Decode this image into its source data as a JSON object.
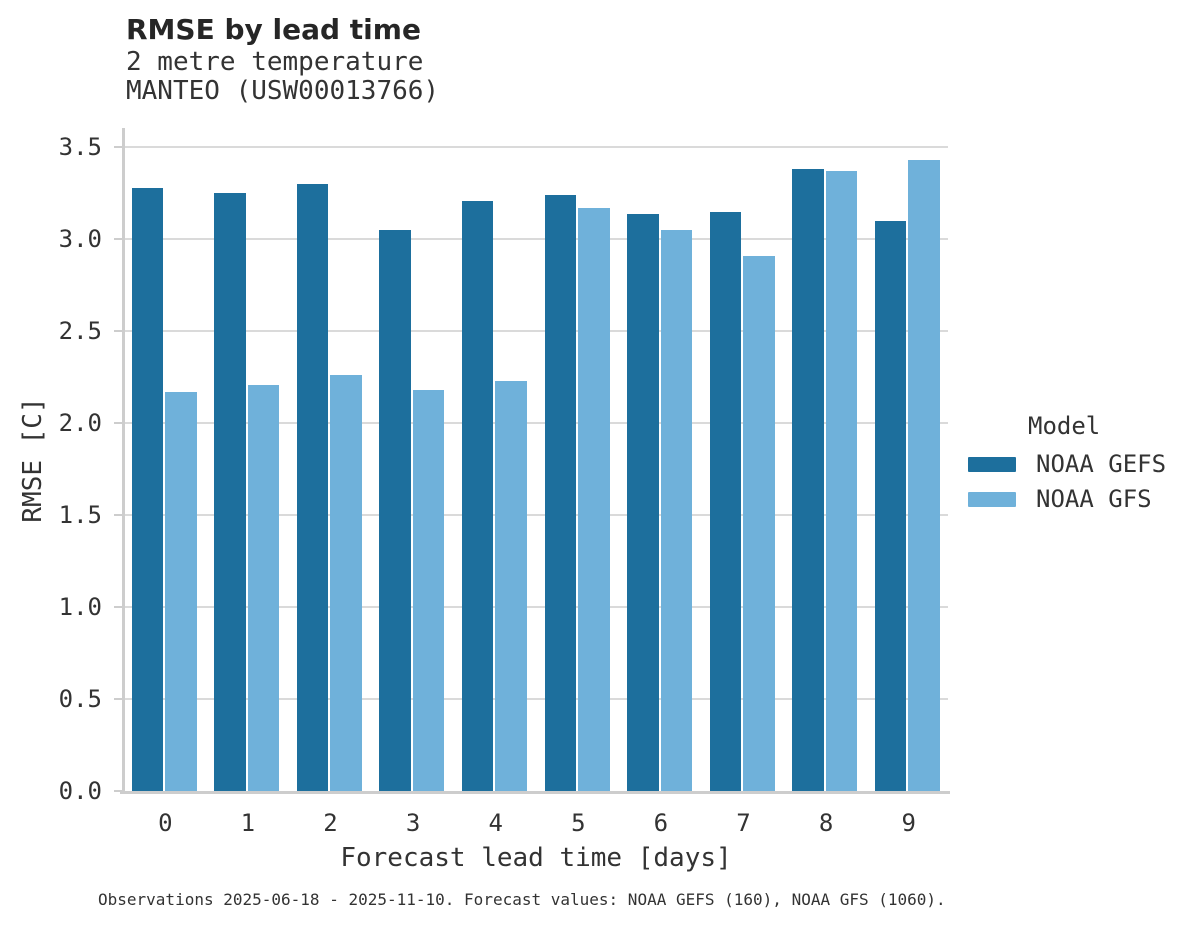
{
  "header": {
    "title": "RMSE by lead time",
    "subtitle": "2 metre temperature",
    "station": "MANTEO (USW00013766)"
  },
  "axes": {
    "x_label": "Forecast lead time [days]",
    "y_label": "RMSE [C]"
  },
  "legend": {
    "title": "Model",
    "items": [
      {
        "label": "NOAA GEFS",
        "color": "#1d6f9d"
      },
      {
        "label": "NOAA GFS",
        "color": "#6fb1da"
      }
    ]
  },
  "footer": {
    "caption": "Observations 2025-06-18 - 2025-11-10. Forecast values: NOAA GEFS (160), NOAA GFS (1060)."
  },
  "chart_data": {
    "type": "bar",
    "title": "RMSE by lead time",
    "subtitle": "2 metre temperature",
    "station": "MANTEO (USW00013766)",
    "categories": [
      "0",
      "1",
      "2",
      "3",
      "4",
      "5",
      "6",
      "7",
      "8",
      "9"
    ],
    "series": [
      {
        "name": "NOAA GEFS",
        "color": "#1d6f9d",
        "values": [
          3.28,
          3.25,
          3.3,
          3.05,
          3.21,
          3.24,
          3.14,
          3.15,
          3.38,
          3.1
        ]
      },
      {
        "name": "NOAA GFS",
        "color": "#6fb1da",
        "values": [
          2.17,
          2.21,
          2.26,
          2.18,
          2.23,
          3.17,
          3.05,
          2.91,
          3.37,
          3.43
        ]
      }
    ],
    "xlabel": "Forecast lead time [days]",
    "ylabel": "RMSE [C]",
    "ylim": [
      0,
      3.62
    ],
    "yticks": [
      0.0,
      0.5,
      1.0,
      1.5,
      2.0,
      2.5,
      3.0,
      3.5
    ],
    "ytick_labels": [
      "0.0",
      "0.5",
      "1.0",
      "1.5",
      "2.0",
      "2.5",
      "3.0",
      "3.5"
    ],
    "grid": true,
    "legend_title": "Model",
    "legend_position": "right outside"
  }
}
